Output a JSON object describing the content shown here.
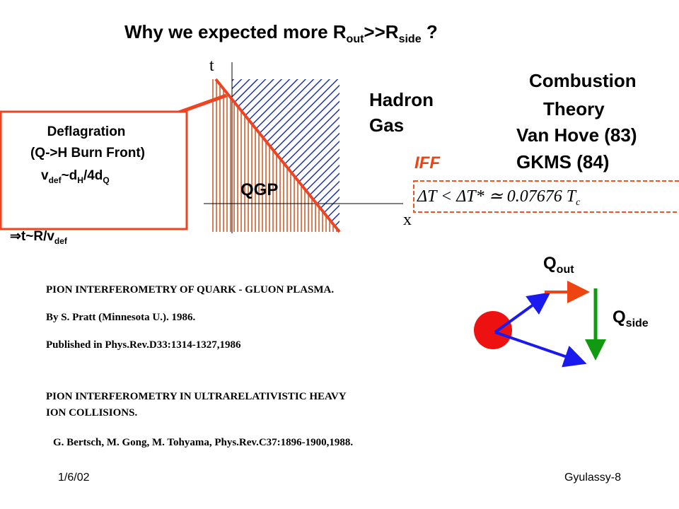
{
  "title": {
    "main": "Why we expected more R",
    "sub1": "out",
    "mid": ">>R",
    "sub2": "side",
    "end": " ?"
  },
  "diagram": {
    "t_axis": "t",
    "x_axis": "x",
    "hadron_gas": [
      "Hadron",
      "Gas"
    ],
    "qgp": "QGP",
    "iff": "IFF"
  },
  "theory": {
    "lines": [
      "Combustion",
      "Theory",
      "Van Hove (83)",
      "GKMS (84)"
    ]
  },
  "formula": {
    "main": "ΔT < ΔT* ≃ 0.07676 T",
    "sub": "c"
  },
  "deflagration": {
    "title": "Deflagration",
    "subtitle": "(Q->H Burn Front)",
    "velocity": {
      "v": "v",
      "def": "def",
      "mid": "~d",
      "h": "H",
      "mid2": "/4d",
      "q": "Q"
    },
    "time": {
      "main": "⇒t~R/v",
      "sub": "def"
    }
  },
  "q_labels": {
    "out": {
      "q": "Q",
      "sub": "out"
    },
    "side": {
      "q": "Q",
      "sub": "side"
    }
  },
  "references": [
    "PION INTERFEROMETRY OF QUARK - GLUON PLASMA.",
    "By S. Pratt (Minnesota U.). 1986.",
    "Published in Phys.Rev.D33:1314-1327,1986",
    "PION INTERFEROMETRY IN  ULTRARELATIVISTIC  HEAVY",
    "ION COLLISIONS.",
    "G. Bertsch, M. Gong, M. Tohyama,  Phys.Rev.C37:1896-1900,1988."
  ],
  "footer": {
    "date": "1/6/02",
    "page": "Gyulassy-8"
  }
}
